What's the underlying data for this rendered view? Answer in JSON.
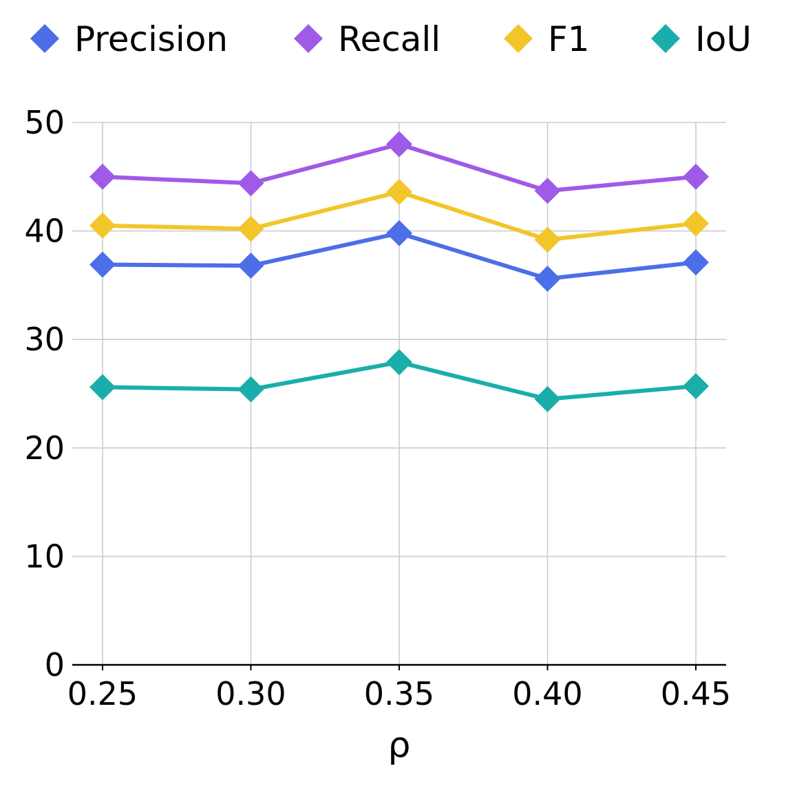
{
  "chart_data": {
    "type": "line",
    "title": "",
    "xlabel": "ρ",
    "ylabel": "",
    "x": [
      "0.25",
      "0.30",
      "0.35",
      "0.40",
      "0.45"
    ],
    "ylim": [
      0,
      50
    ],
    "yticks": [
      "0",
      "10",
      "20",
      "30",
      "40",
      "50"
    ],
    "grid": true,
    "legend_position": "top",
    "series": [
      {
        "name": "Precision",
        "color": "#4c6ee8",
        "marker": "diamond",
        "values": [
          36.9,
          36.8,
          39.8,
          35.6,
          37.1
        ]
      },
      {
        "name": "Recall",
        "color": "#a05ae8",
        "marker": "diamond",
        "values": [
          45.0,
          44.4,
          48.0,
          43.7,
          45.0
        ]
      },
      {
        "name": "F1",
        "color": "#f2c62a",
        "marker": "diamond",
        "values": [
          40.5,
          40.2,
          43.6,
          39.2,
          40.7
        ]
      },
      {
        "name": "IoU",
        "color": "#1aaeaa",
        "marker": "diamond",
        "values": [
          25.6,
          25.4,
          27.9,
          24.5,
          25.7
        ]
      }
    ]
  }
}
